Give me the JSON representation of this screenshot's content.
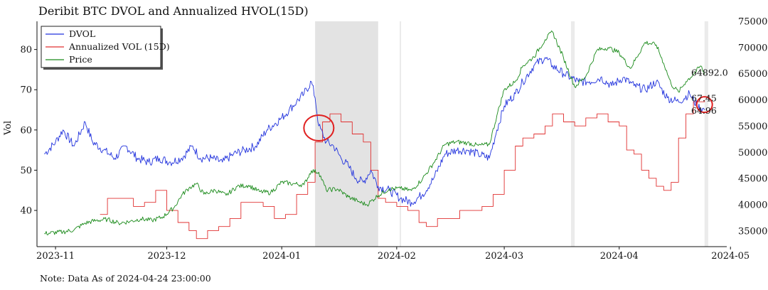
{
  "title": "Deribit BTC DVOL and Annualized HVOL(15D)",
  "note": "Note: Data As of 2024-04-24 23:00:00",
  "colors": {
    "dvol": "#2233dd",
    "hvol": "#e03030",
    "price": "#1a8a1a",
    "shade": "#e3e3e3",
    "circle": "#e02020"
  },
  "chart_data": {
    "type": "line",
    "ylabel": "Vol",
    "xlim": [
      "2023-10-27",
      "2024-04-30"
    ],
    "ylim_left": [
      31,
      87
    ],
    "ylim_right": [
      32000,
      75000
    ],
    "x_ticks": [
      "2023-11-01",
      "2023-12-01",
      "2024-01-01",
      "2024-02-01",
      "2024-03-01",
      "2024-04-01",
      "2024-05-01"
    ],
    "x_tick_labels": [
      "2023-11",
      "2023-12",
      "2024-01",
      "2024-02",
      "2024-03",
      "2024-04",
      "2024-05"
    ],
    "y_left_ticks": [
      40,
      50,
      60,
      70,
      80
    ],
    "y_right_ticks": [
      35000,
      40000,
      45000,
      50000,
      55000,
      60000,
      65000,
      70000,
      75000
    ],
    "legend_position": "top-left",
    "shaded_ranges": [
      [
        "2024-01-10",
        "2024-01-27"
      ],
      [
        "2024-02-02",
        "2024-02-02"
      ],
      [
        "2024-03-19",
        "2024-03-20"
      ],
      [
        "2024-04-24",
        "2024-04-25"
      ]
    ],
    "circles": [
      {
        "x": "2024-01-11",
        "y": 60.5
      },
      {
        "x": "2024-04-24",
        "y": 66.3
      }
    ],
    "end_labels": [
      {
        "text": "64892.0",
        "series": "Price"
      },
      {
        "text": "67.45",
        "series": "Annualized VOL (15D)"
      },
      {
        "text": "64.96",
        "series": "DVOL"
      }
    ],
    "series": [
      {
        "name": "DVOL",
        "axis": "left",
        "points": [
          [
            "2023-10-29",
            54
          ],
          [
            "2023-11-01",
            57
          ],
          [
            "2023-11-03",
            60
          ],
          [
            "2023-11-06",
            56
          ],
          [
            "2023-11-09",
            62
          ],
          [
            "2023-11-11",
            57
          ],
          [
            "2023-11-14",
            55
          ],
          [
            "2023-11-17",
            53
          ],
          [
            "2023-11-20",
            56
          ],
          [
            "2023-11-23",
            53
          ],
          [
            "2023-11-26",
            52
          ],
          [
            "2023-11-29",
            53
          ],
          [
            "2023-12-02",
            52
          ],
          [
            "2023-12-05",
            53
          ],
          [
            "2023-12-08",
            56
          ],
          [
            "2023-12-10",
            53
          ],
          [
            "2023-12-13",
            53
          ],
          [
            "2023-12-16",
            52
          ],
          [
            "2023-12-19",
            54
          ],
          [
            "2023-12-22",
            55
          ],
          [
            "2023-12-25",
            56
          ],
          [
            "2023-12-28",
            60
          ],
          [
            "2024-01-01",
            63
          ],
          [
            "2024-01-03",
            65
          ],
          [
            "2024-01-05",
            67
          ],
          [
            "2024-01-07",
            69
          ],
          [
            "2024-01-09",
            72
          ],
          [
            "2024-01-10",
            68
          ],
          [
            "2024-01-11",
            61
          ],
          [
            "2024-01-13",
            57
          ],
          [
            "2024-01-15",
            56
          ],
          [
            "2024-01-17",
            53
          ],
          [
            "2024-01-19",
            51
          ],
          [
            "2024-01-21",
            48
          ],
          [
            "2024-01-23",
            47
          ],
          [
            "2024-01-25",
            50
          ],
          [
            "2024-01-27",
            46
          ],
          [
            "2024-01-30",
            45
          ],
          [
            "2024-02-02",
            43
          ],
          [
            "2024-02-05",
            42
          ],
          [
            "2024-02-08",
            44
          ],
          [
            "2024-02-11",
            48
          ],
          [
            "2024-02-14",
            54
          ],
          [
            "2024-02-17",
            55
          ],
          [
            "2024-02-20",
            55
          ],
          [
            "2024-02-23",
            54
          ],
          [
            "2024-02-26",
            53
          ],
          [
            "2024-02-28",
            60
          ],
          [
            "2024-03-01",
            66
          ],
          [
            "2024-03-04",
            69
          ],
          [
            "2024-03-06",
            72
          ],
          [
            "2024-03-09",
            76
          ],
          [
            "2024-03-12",
            78
          ],
          [
            "2024-03-14",
            76
          ],
          [
            "2024-03-17",
            74
          ],
          [
            "2024-03-19",
            73
          ],
          [
            "2024-03-21",
            72
          ],
          [
            "2024-03-24",
            72
          ],
          [
            "2024-03-27",
            73
          ],
          [
            "2024-03-30",
            71
          ],
          [
            "2024-04-02",
            73
          ],
          [
            "2024-04-05",
            71
          ],
          [
            "2024-04-08",
            70
          ],
          [
            "2024-04-11",
            72
          ],
          [
            "2024-04-14",
            68
          ],
          [
            "2024-04-17",
            67
          ],
          [
            "2024-04-20",
            69
          ],
          [
            "2024-04-22",
            66
          ],
          [
            "2024-04-24",
            64.96
          ]
        ]
      },
      {
        "name": "Annualized VOL (15D)",
        "axis": "left",
        "points": [
          [
            "2023-11-13",
            39
          ],
          [
            "2023-11-15",
            43
          ],
          [
            "2023-11-19",
            43
          ],
          [
            "2023-11-22",
            41
          ],
          [
            "2023-11-25",
            42
          ],
          [
            "2023-11-28",
            45
          ],
          [
            "2023-12-01",
            40
          ],
          [
            "2023-12-04",
            37
          ],
          [
            "2023-12-07",
            35
          ],
          [
            "2023-12-09",
            33
          ],
          [
            "2023-12-12",
            35
          ],
          [
            "2023-12-15",
            36
          ],
          [
            "2023-12-18",
            38
          ],
          [
            "2023-12-21",
            42
          ],
          [
            "2023-12-24",
            42
          ],
          [
            "2023-12-27",
            41
          ],
          [
            "2023-12-30",
            38
          ],
          [
            "2024-01-02",
            39
          ],
          [
            "2024-01-05",
            44
          ],
          [
            "2024-01-08",
            47
          ],
          [
            "2024-01-10",
            57
          ],
          [
            "2024-01-12",
            62
          ],
          [
            "2024-01-14",
            64
          ],
          [
            "2024-01-17",
            62
          ],
          [
            "2024-01-20",
            59
          ],
          [
            "2024-01-23",
            57
          ],
          [
            "2024-01-25",
            50
          ],
          [
            "2024-01-27",
            43
          ],
          [
            "2024-01-29",
            42
          ],
          [
            "2024-02-01",
            41
          ],
          [
            "2024-02-04",
            40
          ],
          [
            "2024-02-07",
            37
          ],
          [
            "2024-02-09",
            36
          ],
          [
            "2024-02-12",
            38
          ],
          [
            "2024-02-15",
            38
          ],
          [
            "2024-02-18",
            40
          ],
          [
            "2024-02-21",
            40
          ],
          [
            "2024-02-24",
            41
          ],
          [
            "2024-02-27",
            44
          ],
          [
            "2024-03-01",
            50
          ],
          [
            "2024-03-04",
            56
          ],
          [
            "2024-03-06",
            58
          ],
          [
            "2024-03-09",
            59
          ],
          [
            "2024-03-12",
            61
          ],
          [
            "2024-03-14",
            64
          ],
          [
            "2024-03-17",
            62
          ],
          [
            "2024-03-20",
            61
          ],
          [
            "2024-03-23",
            63
          ],
          [
            "2024-03-26",
            64
          ],
          [
            "2024-03-29",
            62
          ],
          [
            "2024-04-01",
            61
          ],
          [
            "2024-04-03",
            55
          ],
          [
            "2024-04-05",
            54
          ],
          [
            "2024-04-07",
            50
          ],
          [
            "2024-04-09",
            48
          ],
          [
            "2024-04-11",
            46
          ],
          [
            "2024-04-13",
            45
          ],
          [
            "2024-04-15",
            47
          ],
          [
            "2024-04-17",
            58
          ],
          [
            "2024-04-19",
            64
          ],
          [
            "2024-04-21",
            67
          ],
          [
            "2024-04-24",
            67.45
          ]
        ]
      },
      {
        "name": "Price",
        "axis": "right",
        "points": [
          [
            "2023-10-29",
            34500
          ],
          [
            "2023-11-03",
            34800
          ],
          [
            "2023-11-06",
            35200
          ],
          [
            "2023-11-09",
            36500
          ],
          [
            "2023-11-12",
            37000
          ],
          [
            "2023-11-15",
            37200
          ],
          [
            "2023-11-18",
            36500
          ],
          [
            "2023-11-21",
            36800
          ],
          [
            "2023-11-24",
            37300
          ],
          [
            "2023-11-27",
            37000
          ],
          [
            "2023-11-30",
            37700
          ],
          [
            "2023-12-03",
            39500
          ],
          [
            "2023-12-05",
            41800
          ],
          [
            "2023-12-07",
            43200
          ],
          [
            "2023-12-09",
            44000
          ],
          [
            "2023-12-11",
            42000
          ],
          [
            "2023-12-14",
            42800
          ],
          [
            "2023-12-17",
            41800
          ],
          [
            "2023-12-20",
            43500
          ],
          [
            "2023-12-23",
            43700
          ],
          [
            "2023-12-26",
            42500
          ],
          [
            "2023-12-29",
            42300
          ],
          [
            "2024-01-01",
            44300
          ],
          [
            "2024-01-04",
            44000
          ],
          [
            "2024-01-07",
            43800
          ],
          [
            "2024-01-09",
            46500
          ],
          [
            "2024-01-11",
            46200
          ],
          [
            "2024-01-13",
            42800
          ],
          [
            "2024-01-16",
            43000
          ],
          [
            "2024-01-19",
            41500
          ],
          [
            "2024-01-22",
            40500
          ],
          [
            "2024-01-24",
            40000
          ],
          [
            "2024-01-27",
            41800
          ],
          [
            "2024-01-30",
            43000
          ],
          [
            "2024-02-02",
            43100
          ],
          [
            "2024-02-05",
            42700
          ],
          [
            "2024-02-08",
            45000
          ],
          [
            "2024-02-11",
            48000
          ],
          [
            "2024-02-14",
            51500
          ],
          [
            "2024-02-17",
            52000
          ],
          [
            "2024-02-20",
            51800
          ],
          [
            "2024-02-23",
            51300
          ],
          [
            "2024-02-26",
            51500
          ],
          [
            "2024-02-28",
            57000
          ],
          [
            "2024-03-01",
            62000
          ],
          [
            "2024-03-04",
            63500
          ],
          [
            "2024-03-06",
            66500
          ],
          [
            "2024-03-09",
            68200
          ],
          [
            "2024-03-12",
            71500
          ],
          [
            "2024-03-14",
            73000
          ],
          [
            "2024-03-17",
            68000
          ],
          [
            "2024-03-20",
            62500
          ],
          [
            "2024-03-23",
            64500
          ],
          [
            "2024-03-26",
            69500
          ],
          [
            "2024-03-29",
            70000
          ],
          [
            "2024-04-01",
            69000
          ],
          [
            "2024-04-04",
            66000
          ],
          [
            "2024-04-08",
            71000
          ],
          [
            "2024-04-11",
            70500
          ],
          [
            "2024-04-13",
            67000
          ],
          [
            "2024-04-15",
            63000
          ],
          [
            "2024-04-17",
            61500
          ],
          [
            "2024-04-19",
            63500
          ],
          [
            "2024-04-21",
            64900
          ],
          [
            "2024-04-23",
            66500
          ],
          [
            "2024-04-24",
            64892
          ]
        ]
      }
    ]
  }
}
